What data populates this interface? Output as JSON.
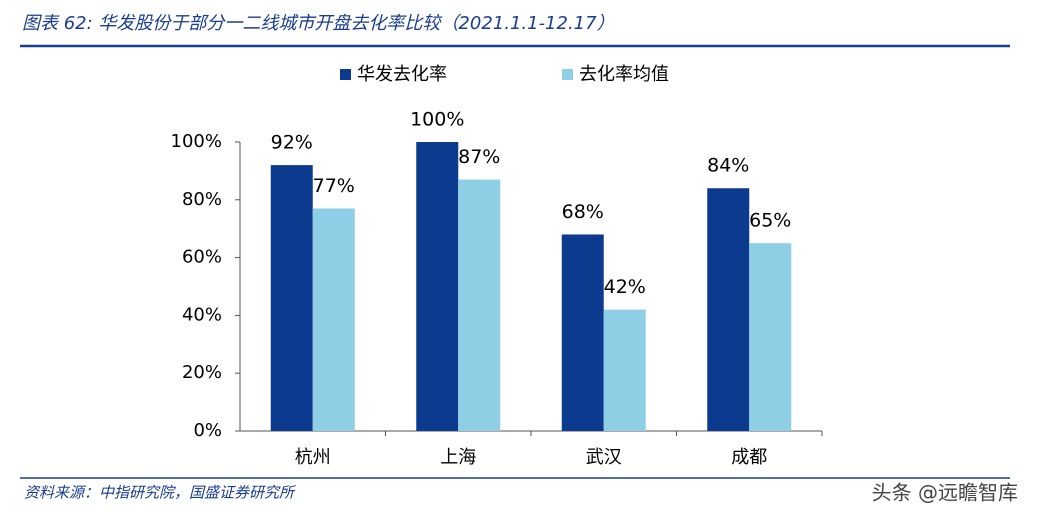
{
  "chart_data": {
    "type": "bar",
    "title": "图表 62:  华发股份于部分一二线城市开盘去化率比较（2021.1.1-12.17）",
    "source": "资料来源：中指研究院，国盛证券研究所",
    "watermark": "头条 @远瞻智库",
    "categories": [
      "杭州",
      "上海",
      "武汉",
      "成都"
    ],
    "series": [
      {
        "name": "华发去化率",
        "color": "#0b3a8e",
        "values": [
          92,
          100,
          68,
          84
        ],
        "value_labels": [
          "92%",
          "100%",
          "68%",
          "84%"
        ]
      },
      {
        "name": "去化率均值",
        "color": "#8ecfe6",
        "values": [
          77,
          87,
          42,
          65
        ],
        "value_labels": [
          "77%",
          "87%",
          "42%",
          "65%"
        ]
      }
    ],
    "ylim": [
      0,
      100
    ],
    "yticks": [
      {
        "value": 0,
        "label": "0%"
      },
      {
        "value": 20,
        "label": "20%"
      },
      {
        "value": 40,
        "label": "40%"
      },
      {
        "value": 60,
        "label": "60%"
      },
      {
        "value": 80,
        "label": "80%"
      },
      {
        "value": 100,
        "label": "100%"
      }
    ],
    "legend": "top"
  }
}
